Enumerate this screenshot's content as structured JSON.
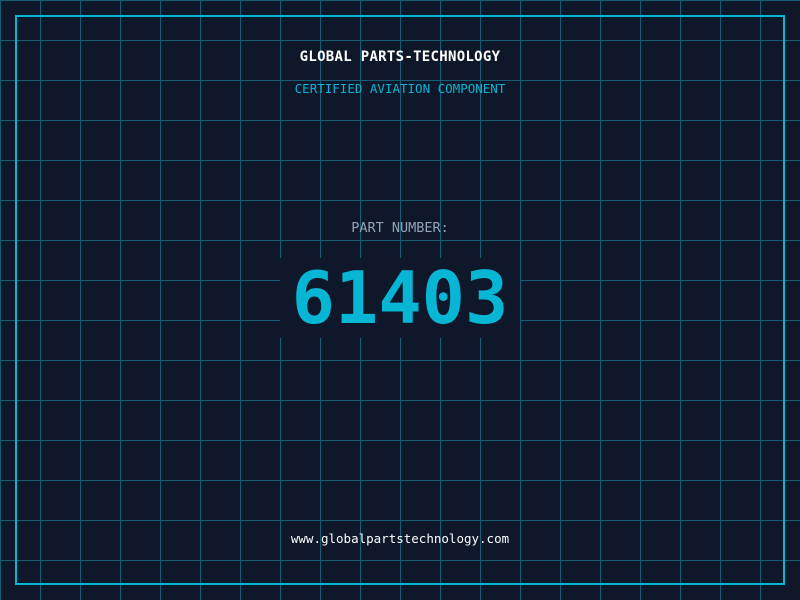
{
  "header": {
    "title": "GLOBAL PARTS-TECHNOLOGY",
    "subtitle": "CERTIFIED AVIATION COMPONENT"
  },
  "part": {
    "label": "PART NUMBER:",
    "number": "61403"
  },
  "footer": {
    "url": "www.globalpartstechnology.com"
  },
  "colors": {
    "background": "#0f172a",
    "grid": "#155e75",
    "accent": "#06b6d4",
    "label": "#94a3b8"
  }
}
